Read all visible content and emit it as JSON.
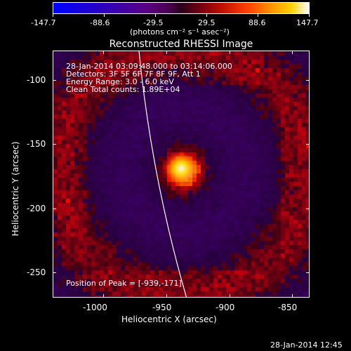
{
  "colorbar": {
    "tick_labels": [
      "-147.7",
      "-88.6",
      "-29.5",
      "29.5",
      "88.6",
      "147.7"
    ],
    "units_label": "(photons cm⁻² s⁻¹ asec⁻²)"
  },
  "plot": {
    "title": "Reconstructed RHESSI Image",
    "info_lines": [
      "28-Jan-2014 03:09:48.000 to 03:14:06.000",
      "Detectors: 3F 5F 6F 7F 8F 9F, Att 1",
      "Energy Range: 3.0 - 6.0 keV",
      "Clean     Total counts: 1.89E+04"
    ],
    "peak_label": "Position of Peak = [-939,-171]",
    "xlabel": "Heliocentric X (arcsec)",
    "ylabel": "Heliocentric Y (arcsec)",
    "x_ticks": [
      "-1000",
      "-950",
      "-900",
      "-850"
    ],
    "y_ticks": [
      "-100",
      "-150",
      "-200",
      "-250"
    ],
    "xlim": [
      -1040,
      -837
    ],
    "ylim": [
      -275,
      -77
    ],
    "peak": {
      "x": -939,
      "y": -171
    }
  },
  "footer": {
    "timestamp": "28-Jan-2014 12:45"
  }
}
